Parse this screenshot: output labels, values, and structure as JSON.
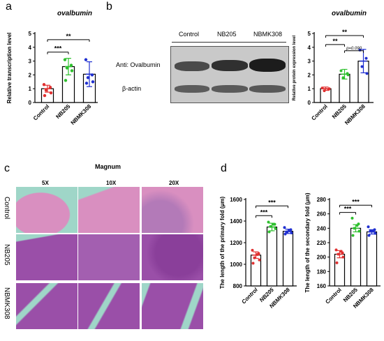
{
  "panel_labels": {
    "a": "a",
    "b": "b",
    "c": "c",
    "d": "d"
  },
  "colors": {
    "control": "#e03030",
    "nb205": "#2ec02e",
    "nbmk308": "#1f2fd0",
    "tissue_pink": "#d98fc0",
    "tissue_purple": "#9a4fa8",
    "lumen": "#9fd6c8"
  },
  "panel_b_blot": {
    "columns": [
      "Control",
      "NB205",
      "NBMK308"
    ],
    "rows": [
      "Anti:  Ovalbumin",
      "β-actin"
    ]
  },
  "panel_c": {
    "title": "Magnum",
    "columns": [
      "5X",
      "10X",
      "20X"
    ],
    "rows": [
      "Control",
      "NB205",
      "NBMK308"
    ]
  },
  "chart_data": [
    {
      "id": "a",
      "type": "bar",
      "title": "ovalbumin",
      "ylabel": "Relative transcription level",
      "ylim": [
        0,
        5
      ],
      "yticks": [
        "0",
        "1",
        "2",
        "3",
        "4",
        "5"
      ],
      "categories": [
        "Control",
        "NB205",
        "NBMK308"
      ],
      "values": [
        1.0,
        2.6,
        2.05
      ],
      "errors": [
        0.25,
        0.6,
        0.9
      ],
      "points": [
        [
          1.3,
          1.1,
          0.9,
          0.7,
          0.5
        ],
        [
          3.1,
          2.7,
          2.5,
          2.3,
          1.6
        ],
        [
          3.1,
          2.0,
          1.8,
          1.5,
          1.4
        ]
      ],
      "significance": [
        {
          "from": 0,
          "to": 1,
          "label": "***",
          "y": 3.65
        },
        {
          "from": 0,
          "to": 2,
          "label": "**",
          "y": 4.55
        }
      ]
    },
    {
      "id": "b",
      "type": "bar",
      "title": "ovalbumin",
      "ylabel": "Relative protein expression level",
      "ylim": [
        0,
        5
      ],
      "yticks": [
        "0",
        "1",
        "2",
        "3",
        "4",
        "5"
      ],
      "categories": [
        "Control",
        "NB205",
        "NBMK308"
      ],
      "values": [
        1.0,
        2.05,
        3.0
      ],
      "errors": [
        0.12,
        0.35,
        0.85
      ],
      "points": [
        [
          1.05,
          0.95,
          0.85,
          1.0
        ],
        [
          2.3,
          2.1,
          1.8,
          2.0
        ],
        [
          3.8,
          3.2,
          2.6,
          2.1
        ]
      ],
      "significance": [
        {
          "from": 0,
          "to": 1,
          "label": "**",
          "y": 4.2
        },
        {
          "from": 0,
          "to": 2,
          "label": "**",
          "y": 4.85
        },
        {
          "from": 1,
          "to": 2,
          "label": "p=0.090",
          "y": 3.75
        }
      ]
    },
    {
      "id": "d1",
      "type": "bar",
      "ylabel": "The length of the primary fold (μm)",
      "ylim": [
        800,
        1600
      ],
      "yticks": [
        "800",
        "1000",
        "1200",
        "1400",
        "1600"
      ],
      "categories": [
        "Control",
        "NB205",
        "NBMK308"
      ],
      "values": [
        1085,
        1345,
        1305
      ],
      "errors": [
        30,
        35,
        20
      ],
      "points": [
        [
          1130,
          1100,
          1060,
          1040,
          1010,
          1090
        ],
        [
          1390,
          1370,
          1350,
          1330,
          1300,
          1370
        ],
        [
          1340,
          1320,
          1300,
          1290,
          1280,
          1310
        ]
      ],
      "significance": [
        {
          "from": 0,
          "to": 1,
          "label": "***",
          "y": 1450
        },
        {
          "from": 0,
          "to": 2,
          "label": "***",
          "y": 1540
        }
      ]
    },
    {
      "id": "d2",
      "type": "bar",
      "ylabel": "The length of the secondary fold (μm)",
      "ylim": [
        160,
        280
      ],
      "yticks": [
        "160",
        "180",
        "200",
        "220",
        "240",
        "260",
        "280"
      ],
      "categories": [
        "Control",
        "NB205",
        "NBMK308"
      ],
      "values": [
        204,
        240,
        235
      ],
      "errors": [
        5,
        5,
        3
      ],
      "points": [
        [
          210,
          206,
          204,
          200,
          192,
          208
        ],
        [
          254,
          246,
          240,
          236,
          230,
          244
        ],
        [
          242,
          238,
          236,
          233,
          230,
          236
        ]
      ],
      "significance": [
        {
          "from": 0,
          "to": 1,
          "label": "***",
          "y": 262
        },
        {
          "from": 0,
          "to": 2,
          "label": "***",
          "y": 272
        }
      ]
    }
  ]
}
